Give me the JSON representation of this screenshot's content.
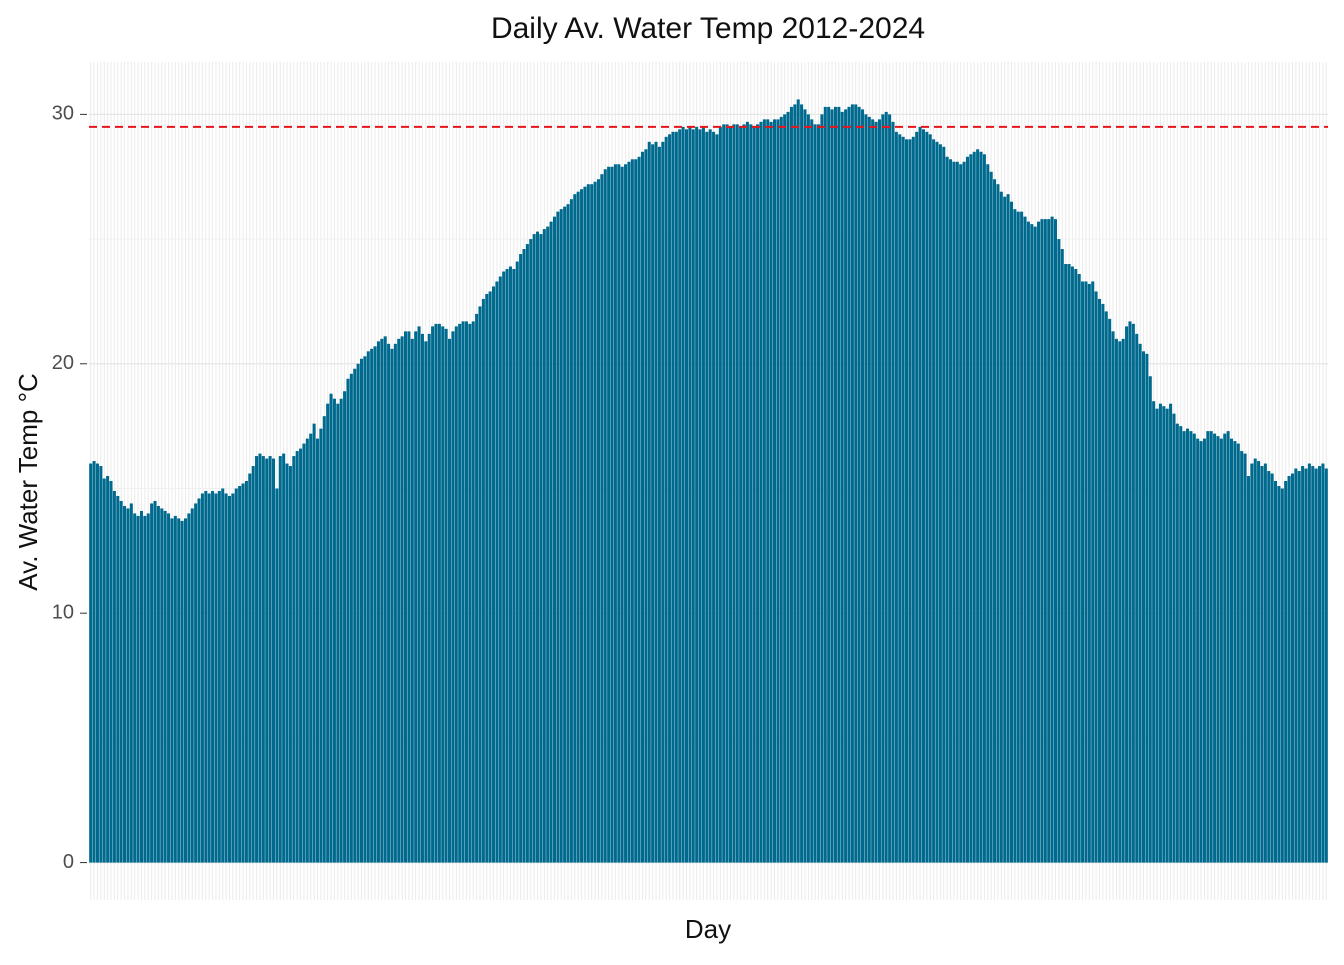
{
  "chart_data": {
    "type": "bar",
    "title": "Daily Av. Water Temp 2012-2024",
    "xlabel": "Day",
    "ylabel": "Av. Water Temp °C",
    "categories": [
      null,
      null,
      null,
      null,
      null,
      null,
      null,
      null,
      null,
      null,
      null,
      null,
      null,
      null,
      null,
      null,
      null,
      null,
      null,
      null,
      null,
      null,
      null,
      null,
      null,
      null,
      null,
      null,
      null,
      null,
      null,
      null,
      null,
      null,
      null,
      null,
      null,
      null,
      null,
      null,
      null,
      null,
      null,
      null,
      null,
      null,
      null,
      null,
      null,
      null,
      null,
      null,
      null,
      null,
      null,
      null,
      null,
      null,
      null,
      null,
      null,
      null,
      null,
      null,
      null,
      null,
      null,
      null,
      null,
      null,
      null,
      null,
      null,
      null,
      null,
      null,
      null,
      null,
      null,
      null,
      null,
      null,
      null,
      null,
      null,
      null,
      null,
      null,
      null,
      null,
      null,
      null,
      null,
      null,
      null,
      null,
      null,
      null,
      null,
      null,
      null,
      null,
      null,
      null,
      null,
      null,
      null,
      null,
      null,
      null,
      null,
      null,
      null,
      null,
      null,
      null,
      null,
      null,
      null,
      null,
      null,
      null,
      null,
      null,
      null,
      null,
      null,
      null,
      null,
      null,
      null,
      null,
      null,
      null,
      null,
      null,
      null,
      null,
      null,
      null,
      null,
      null,
      null,
      null,
      null,
      null,
      null,
      null,
      null,
      null,
      null,
      null,
      null,
      null,
      null,
      null,
      null,
      null,
      null,
      null,
      null,
      null,
      null,
      null,
      null,
      null,
      null,
      null,
      null,
      null,
      null,
      null,
      null,
      null,
      null,
      null,
      null,
      null,
      null,
      null,
      null,
      null,
      null,
      null,
      null,
      null,
      null,
      null,
      null,
      null,
      null,
      null,
      null,
      null,
      null,
      null,
      null,
      null,
      null,
      null,
      null,
      null,
      null,
      null,
      null,
      null,
      null,
      null,
      null,
      null,
      null,
      null,
      null,
      null,
      null,
      null,
      null,
      null,
      null,
      null,
      null,
      null,
      null,
      null,
      null,
      null,
      null,
      null,
      null,
      null,
      null,
      null,
      null,
      null,
      null,
      null,
      null,
      null,
      null,
      null,
      null,
      null,
      null,
      null,
      null,
      null,
      null,
      null,
      null,
      null,
      null,
      null,
      null,
      null,
      null,
      null,
      null,
      null,
      null,
      null,
      null,
      null,
      null,
      null,
      null,
      null,
      null,
      null,
      null,
      null,
      null,
      null,
      null,
      null,
      null,
      null,
      null,
      null,
      null,
      null,
      null,
      null,
      null,
      null,
      null,
      null,
      null,
      null,
      null,
      null,
      null,
      null,
      null,
      null,
      null,
      null,
      null,
      null,
      null,
      null,
      null,
      null,
      null,
      null,
      null,
      null,
      null,
      null,
      null,
      null,
      null,
      null,
      null,
      null,
      null,
      null,
      null,
      null,
      null,
      null,
      null,
      null,
      null,
      null,
      null,
      null,
      null,
      null,
      null,
      null,
      null,
      null,
      null,
      null,
      null,
      null,
      null,
      null,
      null,
      null,
      null,
      null,
      null,
      null,
      null,
      null,
      null,
      null,
      null,
      null,
      null,
      null,
      null,
      null,
      null,
      null,
      null,
      null,
      null,
      null,
      null,
      null,
      null,
      null,
      null,
      null
    ],
    "values": [
      16.0,
      16.1,
      16.0,
      15.9,
      15.4,
      15.5,
      15.3,
      14.9,
      14.7,
      14.5,
      14.3,
      14.2,
      14.4,
      14.0,
      13.9,
      14.1,
      13.9,
      14.0,
      14.4,
      14.5,
      14.3,
      14.2,
      14.1,
      14.0,
      13.8,
      13.9,
      13.8,
      13.7,
      13.8,
      14.0,
      14.2,
      14.4,
      14.6,
      14.8,
      14.9,
      14.8,
      14.9,
      14.8,
      14.9,
      15.0,
      14.8,
      14.7,
      14.8,
      15.0,
      15.1,
      15.2,
      15.3,
      15.6,
      15.9,
      16.3,
      16.4,
      16.3,
      16.2,
      16.3,
      16.2,
      15.0,
      16.3,
      16.4,
      16.0,
      15.9,
      16.3,
      16.5,
      16.6,
      16.8,
      17.0,
      17.2,
      17.6,
      17.0,
      17.4,
      17.9,
      18.4,
      18.8,
      18.6,
      18.4,
      18.6,
      18.9,
      19.4,
      19.6,
      19.8,
      20.0,
      20.2,
      20.3,
      20.5,
      20.6,
      20.7,
      20.9,
      21.0,
      21.1,
      20.8,
      20.6,
      20.8,
      21.0,
      21.1,
      21.3,
      21.3,
      21.0,
      21.3,
      21.5,
      21.2,
      20.9,
      21.2,
      21.5,
      21.6,
      21.6,
      21.5,
      21.4,
      21.0,
      21.3,
      21.5,
      21.6,
      21.7,
      21.7,
      21.6,
      21.7,
      22.0,
      22.3,
      22.6,
      22.8,
      22.9,
      23.1,
      23.3,
      23.5,
      23.7,
      23.8,
      23.9,
      23.8,
      24.1,
      24.4,
      24.6,
      24.8,
      25.0,
      25.2,
      25.3,
      25.2,
      25.4,
      25.5,
      25.7,
      25.9,
      26.1,
      26.2,
      26.3,
      26.4,
      26.6,
      26.8,
      26.9,
      27.0,
      27.1,
      27.2,
      27.2,
      27.3,
      27.4,
      27.6,
      27.8,
      27.9,
      27.9,
      28.0,
      28.0,
      27.9,
      28.0,
      28.1,
      28.2,
      28.2,
      28.3,
      28.5,
      28.6,
      28.9,
      28.8,
      28.9,
      28.7,
      28.9,
      29.1,
      29.2,
      29.3,
      29.3,
      29.4,
      29.5,
      29.4,
      29.5,
      29.4,
      29.5,
      29.4,
      29.5,
      29.3,
      29.4,
      29.3,
      29.2,
      29.5,
      29.6,
      29.6,
      29.5,
      29.6,
      29.6,
      29.5,
      29.6,
      29.7,
      29.6,
      29.5,
      29.6,
      29.7,
      29.8,
      29.8,
      29.7,
      29.8,
      29.8,
      29.9,
      30.0,
      30.1,
      30.3,
      30.4,
      30.6,
      30.4,
      30.2,
      30.0,
      29.8,
      29.6,
      29.6,
      30.0,
      30.3,
      30.3,
      30.2,
      30.3,
      30.3,
      30.1,
      30.2,
      30.3,
      30.4,
      30.4,
      30.3,
      30.2,
      30.0,
      29.9,
      29.8,
      29.7,
      29.8,
      30.0,
      30.1,
      30.0,
      29.7,
      29.3,
      29.2,
      29.1,
      29.0,
      29.0,
      29.1,
      29.3,
      29.5,
      29.4,
      29.3,
      29.2,
      29.0,
      28.9,
      28.8,
      28.7,
      28.3,
      28.2,
      28.1,
      28.1,
      28.0,
      28.1,
      28.3,
      28.4,
      28.5,
      28.6,
      28.5,
      28.4,
      28.0,
      27.7,
      27.4,
      27.2,
      26.9,
      26.7,
      26.8,
      26.5,
      26.2,
      26.1,
      26.1,
      25.9,
      25.7,
      25.6,
      25.5,
      25.7,
      25.8,
      25.8,
      25.8,
      25.9,
      25.8,
      25.0,
      24.6,
      24.0,
      24.0,
      23.9,
      23.8,
      23.6,
      23.3,
      23.3,
      23.2,
      23.3,
      22.9,
      22.6,
      22.4,
      22.1,
      21.8,
      21.3,
      21.0,
      20.9,
      21.0,
      21.5,
      21.7,
      21.6,
      21.2,
      20.8,
      20.5,
      20.4,
      19.5,
      18.5,
      18.2,
      18.4,
      18.3,
      18.2,
      18.4,
      18.0,
      17.6,
      17.5,
      17.3,
      17.4,
      17.3,
      17.2,
      17.0,
      16.9,
      17.0,
      17.3,
      17.3,
      17.2,
      17.1,
      17.0,
      17.2,
      17.3,
      17.0,
      16.9,
      16.8,
      16.5,
      16.4,
      15.5,
      16.0,
      16.2,
      16.1,
      15.9,
      16.0,
      15.7,
      15.6,
      15.3,
      15.1,
      15.0,
      15.3,
      15.5,
      15.6,
      15.8,
      15.7,
      15.9,
      15.8,
      16.0,
      15.9,
      15.8,
      15.9,
      16.0,
      15.8
    ],
    "color": "#006a8e",
    "ylim": [
      -1.5,
      32.1
    ],
    "yticks": [
      0,
      10,
      20,
      30
    ],
    "grid": true,
    "hline": {
      "value": 29.5,
      "color": "#e8141c"
    }
  }
}
